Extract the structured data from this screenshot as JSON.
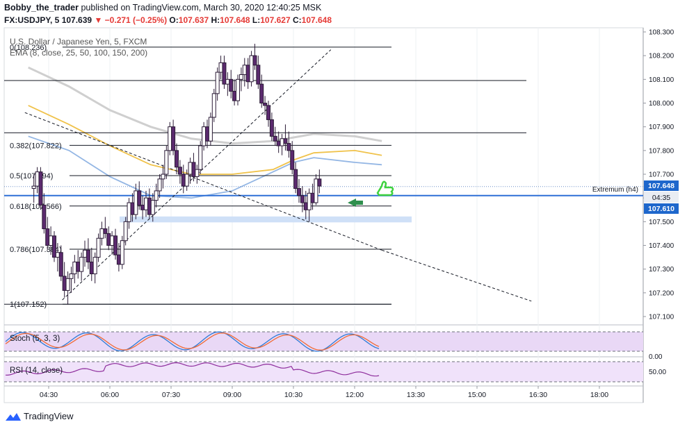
{
  "header": {
    "author": "Bobby_the_trader",
    "published_text": "published on TradingView.com, March 30, 2020 12:40:25 MSK",
    "symbol": "FX:USDJPY, 5",
    "last": "107.639",
    "change": "−0.271 (−0.25%)",
    "open_label": "O:",
    "open": "107.637",
    "high_label": "H:",
    "high": "107.648",
    "low_label": "L:",
    "low": "107.627",
    "close_label": "C:",
    "close": "107.648"
  },
  "legend": {
    "title": "U.S. Dollar / Japanese Yen, 5, FXCM",
    "ema": "EMA (8, close, 25, 50, 100, 150, 200)"
  },
  "chart_data": {
    "type": "candlestick",
    "price_axis": {
      "ticks": [
        "108.300",
        "108.200",
        "108.100",
        "108.000",
        "107.900",
        "107.800",
        "107.700",
        "107.600",
        "107.500",
        "107.400",
        "107.300",
        "107.200",
        "107.100"
      ],
      "range": [
        107.05,
        108.33
      ]
    },
    "time_axis": {
      "ticks": [
        "04:30",
        "06:00",
        "07:30",
        "09:00",
        "10:30",
        "12:00",
        "13:30",
        "15:00",
        "16:30",
        "18:00"
      ]
    },
    "price_labels": {
      "last": "107.648",
      "countdown": "04:35",
      "level": "107.610"
    },
    "extremum_label": "Extremum (h4)",
    "fib_levels": [
      {
        "label": "0(108.236)",
        "price": 108.236
      },
      {
        "label": "0.382(107.822)",
        "price": 107.822
      },
      {
        "label": "0.5(107.694)",
        "price": 107.694
      },
      {
        "label": "0.618(107.566)",
        "price": 107.566
      },
      {
        "label": "0.786(107.384)",
        "price": 107.384
      },
      {
        "label": "1(107.152)",
        "price": 107.152
      }
    ],
    "horizontal_lines": [
      108.095,
      107.875
    ],
    "level_line": 107.61,
    "zone": [
      107.497,
      107.522
    ],
    "trend_lines": [
      {
        "from": [
          "04:50",
          107.17
        ],
        "to": [
          "11:25",
          108.225
        ]
      },
      {
        "from": [
          "03:55",
          107.96
        ],
        "to": [
          "12:40",
          107.38
        ]
      },
      {
        "from": [
          "12:40",
          107.38
        ],
        "to": [
          "16:20",
          107.165
        ]
      }
    ],
    "ema_series": [
      {
        "name": "EMA 50",
        "color": "#f0c24a",
        "points": [
          [
            "04:00",
            107.99
          ],
          [
            "05:00",
            107.91
          ],
          [
            "06:00",
            107.82
          ],
          [
            "07:00",
            107.74
          ],
          [
            "08:00",
            107.7
          ],
          [
            "09:00",
            107.7
          ],
          [
            "10:00",
            107.72
          ],
          [
            "10:30",
            107.76
          ],
          [
            "11:00",
            107.79
          ],
          [
            "12:00",
            107.8
          ],
          [
            "12:40",
            107.78
          ]
        ]
      },
      {
        "name": "EMA 100",
        "color": "#93b6e4",
        "points": [
          [
            "04:00",
            107.86
          ],
          [
            "05:00",
            107.8
          ],
          [
            "06:00",
            107.69
          ],
          [
            "07:00",
            107.61
          ],
          [
            "08:00",
            107.6
          ],
          [
            "09:00",
            107.63
          ],
          [
            "10:00",
            107.71
          ],
          [
            "10:30",
            107.75
          ],
          [
            "11:00",
            107.77
          ],
          [
            "12:00",
            107.75
          ],
          [
            "12:40",
            107.74
          ]
        ]
      },
      {
        "name": "EMA 200",
        "color": "#cfcfcf",
        "points": [
          [
            "04:00",
            108.15
          ],
          [
            "05:00",
            108.07
          ],
          [
            "06:00",
            107.97
          ],
          [
            "07:00",
            107.9
          ],
          [
            "08:00",
            107.85
          ],
          [
            "09:00",
            107.83
          ],
          [
            "10:00",
            107.84
          ],
          [
            "11:00",
            107.87
          ],
          [
            "12:00",
            107.86
          ],
          [
            "12:40",
            107.84
          ]
        ]
      }
    ],
    "candles": [
      {
        "t": "04:00",
        "o": 107.64,
        "h": 107.7,
        "l": 107.58,
        "c": 107.65
      },
      {
        "t": "04:05",
        "o": 107.65,
        "h": 107.73,
        "l": 107.62,
        "c": 107.71
      },
      {
        "t": "04:10",
        "o": 107.71,
        "h": 107.73,
        "l": 107.55,
        "c": 107.57
      },
      {
        "t": "04:15",
        "o": 107.57,
        "h": 107.62,
        "l": 107.45,
        "c": 107.47
      },
      {
        "t": "04:20",
        "o": 107.47,
        "h": 107.52,
        "l": 107.38,
        "c": 107.4
      },
      {
        "t": "04:25",
        "o": 107.4,
        "h": 107.48,
        "l": 107.36,
        "c": 107.44
      },
      {
        "t": "04:30",
        "o": 107.44,
        "h": 107.46,
        "l": 107.33,
        "c": 107.35
      },
      {
        "t": "04:35",
        "o": 107.35,
        "h": 107.41,
        "l": 107.29,
        "c": 107.37
      },
      {
        "t": "04:40",
        "o": 107.37,
        "h": 107.4,
        "l": 107.25,
        "c": 107.27
      },
      {
        "t": "04:45",
        "o": 107.27,
        "h": 107.33,
        "l": 107.18,
        "c": 107.21
      },
      {
        "t": "04:50",
        "o": 107.21,
        "h": 107.29,
        "l": 107.15,
        "c": 107.26
      },
      {
        "t": "04:55",
        "o": 107.26,
        "h": 107.31,
        "l": 107.2,
        "c": 107.28
      },
      {
        "t": "05:00",
        "o": 107.28,
        "h": 107.36,
        "l": 107.24,
        "c": 107.33
      },
      {
        "t": "05:05",
        "o": 107.33,
        "h": 107.38,
        "l": 107.26,
        "c": 107.29
      },
      {
        "t": "05:10",
        "o": 107.29,
        "h": 107.37,
        "l": 107.25,
        "c": 107.35
      },
      {
        "t": "05:15",
        "o": 107.35,
        "h": 107.42,
        "l": 107.31,
        "c": 107.38
      },
      {
        "t": "05:20",
        "o": 107.38,
        "h": 107.43,
        "l": 107.3,
        "c": 107.33
      },
      {
        "t": "05:25",
        "o": 107.33,
        "h": 107.39,
        "l": 107.25,
        "c": 107.28
      },
      {
        "t": "05:30",
        "o": 107.28,
        "h": 107.37,
        "l": 107.24,
        "c": 107.35
      },
      {
        "t": "05:35",
        "o": 107.35,
        "h": 107.45,
        "l": 107.33,
        "c": 107.43
      },
      {
        "t": "05:40",
        "o": 107.43,
        "h": 107.5,
        "l": 107.4,
        "c": 107.47
      },
      {
        "t": "05:45",
        "o": 107.47,
        "h": 107.52,
        "l": 107.43,
        "c": 107.45
      },
      {
        "t": "05:50",
        "o": 107.45,
        "h": 107.48,
        "l": 107.38,
        "c": 107.4
      },
      {
        "t": "05:55",
        "o": 107.4,
        "h": 107.46,
        "l": 107.36,
        "c": 107.44
      },
      {
        "t": "06:00",
        "o": 107.44,
        "h": 107.47,
        "l": 107.34,
        "c": 107.36
      },
      {
        "t": "06:05",
        "o": 107.36,
        "h": 107.41,
        "l": 107.29,
        "c": 107.32
      },
      {
        "t": "06:10",
        "o": 107.32,
        "h": 107.44,
        "l": 107.3,
        "c": 107.42
      },
      {
        "t": "06:15",
        "o": 107.42,
        "h": 107.52,
        "l": 107.4,
        "c": 107.5
      },
      {
        "t": "06:20",
        "o": 107.5,
        "h": 107.6,
        "l": 107.47,
        "c": 107.58
      },
      {
        "t": "06:25",
        "o": 107.58,
        "h": 107.62,
        "l": 107.5,
        "c": 107.53
      },
      {
        "t": "06:30",
        "o": 107.53,
        "h": 107.66,
        "l": 107.51,
        "c": 107.63
      },
      {
        "t": "06:35",
        "o": 107.63,
        "h": 107.67,
        "l": 107.55,
        "c": 107.57
      },
      {
        "t": "06:40",
        "o": 107.57,
        "h": 107.61,
        "l": 107.51,
        "c": 107.55
      },
      {
        "t": "06:45",
        "o": 107.55,
        "h": 107.63,
        "l": 107.52,
        "c": 107.6
      },
      {
        "t": "06:50",
        "o": 107.6,
        "h": 107.64,
        "l": 107.51,
        "c": 107.53
      },
      {
        "t": "06:55",
        "o": 107.53,
        "h": 107.62,
        "l": 107.5,
        "c": 107.59
      },
      {
        "t": "07:00",
        "o": 107.59,
        "h": 107.66,
        "l": 107.56,
        "c": 107.63
      },
      {
        "t": "07:05",
        "o": 107.63,
        "h": 107.7,
        "l": 107.6,
        "c": 107.68
      },
      {
        "t": "07:10",
        "o": 107.68,
        "h": 107.74,
        "l": 107.64,
        "c": 107.7
      },
      {
        "t": "07:15",
        "o": 107.7,
        "h": 107.82,
        "l": 107.68,
        "c": 107.8
      },
      {
        "t": "07:20",
        "o": 107.8,
        "h": 107.92,
        "l": 107.78,
        "c": 107.9
      },
      {
        "t": "07:25",
        "o": 107.9,
        "h": 107.93,
        "l": 107.78,
        "c": 107.8
      },
      {
        "t": "07:30",
        "o": 107.8,
        "h": 107.83,
        "l": 107.7,
        "c": 107.73
      },
      {
        "t": "07:35",
        "o": 107.73,
        "h": 107.76,
        "l": 107.66,
        "c": 107.7
      },
      {
        "t": "07:40",
        "o": 107.7,
        "h": 107.74,
        "l": 107.62,
        "c": 107.65
      },
      {
        "t": "07:45",
        "o": 107.65,
        "h": 107.72,
        "l": 107.63,
        "c": 107.7
      },
      {
        "t": "07:50",
        "o": 107.7,
        "h": 107.77,
        "l": 107.66,
        "c": 107.75
      },
      {
        "t": "07:55",
        "o": 107.75,
        "h": 107.79,
        "l": 107.67,
        "c": 107.69
      },
      {
        "t": "08:00",
        "o": 107.69,
        "h": 107.74,
        "l": 107.66,
        "c": 107.72
      },
      {
        "t": "08:05",
        "o": 107.72,
        "h": 107.84,
        "l": 107.7,
        "c": 107.82
      },
      {
        "t": "08:10",
        "o": 107.82,
        "h": 107.92,
        "l": 107.8,
        "c": 107.9
      },
      {
        "t": "08:15",
        "o": 107.9,
        "h": 107.93,
        "l": 107.81,
        "c": 107.84
      },
      {
        "t": "08:20",
        "o": 107.84,
        "h": 107.96,
        "l": 107.82,
        "c": 107.94
      },
      {
        "t": "08:25",
        "o": 107.94,
        "h": 108.06,
        "l": 107.92,
        "c": 108.04
      },
      {
        "t": "08:30",
        "o": 108.04,
        "h": 108.15,
        "l": 108.01,
        "c": 108.13
      },
      {
        "t": "08:35",
        "o": 108.13,
        "h": 108.2,
        "l": 108.1,
        "c": 108.17
      },
      {
        "t": "08:40",
        "o": 108.17,
        "h": 108.2,
        "l": 108.06,
        "c": 108.08
      },
      {
        "t": "08:45",
        "o": 108.08,
        "h": 108.13,
        "l": 108.03,
        "c": 108.1
      },
      {
        "t": "08:50",
        "o": 108.1,
        "h": 108.14,
        "l": 108.02,
        "c": 108.05
      },
      {
        "t": "08:55",
        "o": 108.05,
        "h": 108.1,
        "l": 107.99,
        "c": 108.01
      },
      {
        "t": "09:00",
        "o": 108.01,
        "h": 108.12,
        "l": 107.99,
        "c": 108.1
      },
      {
        "t": "09:05",
        "o": 108.1,
        "h": 108.15,
        "l": 108.05,
        "c": 108.12
      },
      {
        "t": "09:10",
        "o": 108.12,
        "h": 108.19,
        "l": 108.07,
        "c": 108.16
      },
      {
        "t": "09:15",
        "o": 108.16,
        "h": 108.19,
        "l": 108.06,
        "c": 108.09
      },
      {
        "t": "09:20",
        "o": 108.09,
        "h": 108.22,
        "l": 108.07,
        "c": 108.2
      },
      {
        "t": "09:25",
        "o": 108.2,
        "h": 108.25,
        "l": 108.14,
        "c": 108.16
      },
      {
        "t": "09:30",
        "o": 108.16,
        "h": 108.2,
        "l": 108.06,
        "c": 108.08
      },
      {
        "t": "09:35",
        "o": 108.08,
        "h": 108.12,
        "l": 107.98,
        "c": 108.0
      },
      {
        "t": "09:40",
        "o": 108.0,
        "h": 108.03,
        "l": 107.95,
        "c": 107.99
      },
      {
        "t": "09:45",
        "o": 107.99,
        "h": 108.01,
        "l": 107.9,
        "c": 107.93
      },
      {
        "t": "09:50",
        "o": 107.93,
        "h": 107.96,
        "l": 107.84,
        "c": 107.86
      },
      {
        "t": "09:55",
        "o": 107.86,
        "h": 107.9,
        "l": 107.82,
        "c": 107.84
      },
      {
        "t": "10:00",
        "o": 107.84,
        "h": 107.88,
        "l": 107.79,
        "c": 107.82
      },
      {
        "t": "10:05",
        "o": 107.82,
        "h": 107.87,
        "l": 107.78,
        "c": 107.85
      },
      {
        "t": "10:10",
        "o": 107.85,
        "h": 107.91,
        "l": 107.8,
        "c": 107.83
      },
      {
        "t": "10:15",
        "o": 107.83,
        "h": 107.88,
        "l": 107.77,
        "c": 107.8
      },
      {
        "t": "10:20",
        "o": 107.8,
        "h": 107.84,
        "l": 107.7,
        "c": 107.72
      },
      {
        "t": "10:25",
        "o": 107.72,
        "h": 107.75,
        "l": 107.62,
        "c": 107.64
      },
      {
        "t": "10:30",
        "o": 107.64,
        "h": 107.68,
        "l": 107.58,
        "c": 107.61
      },
      {
        "t": "10:35",
        "o": 107.61,
        "h": 107.65,
        "l": 107.54,
        "c": 107.58
      },
      {
        "t": "10:40",
        "o": 107.58,
        "h": 107.63,
        "l": 107.51,
        "c": 107.55
      },
      {
        "t": "10:45",
        "o": 107.55,
        "h": 107.64,
        "l": 107.5,
        "c": 107.62
      },
      {
        "t": "10:50",
        "o": 107.62,
        "h": 107.66,
        "l": 107.55,
        "c": 107.58
      },
      {
        "t": "10:55",
        "o": 107.58,
        "h": 107.7,
        "l": 107.57,
        "c": 107.68
      },
      {
        "t": "11:00",
        "o": 107.68,
        "h": 107.72,
        "l": 107.62,
        "c": 107.65
      }
    ]
  },
  "stoch": {
    "label": "Stoch (5, 3, 3)",
    "axis_label": "0.00"
  },
  "rsi": {
    "label": "RSI (14, close)",
    "axis_label": "50.00"
  },
  "footer": {
    "brand": "TradingView"
  }
}
